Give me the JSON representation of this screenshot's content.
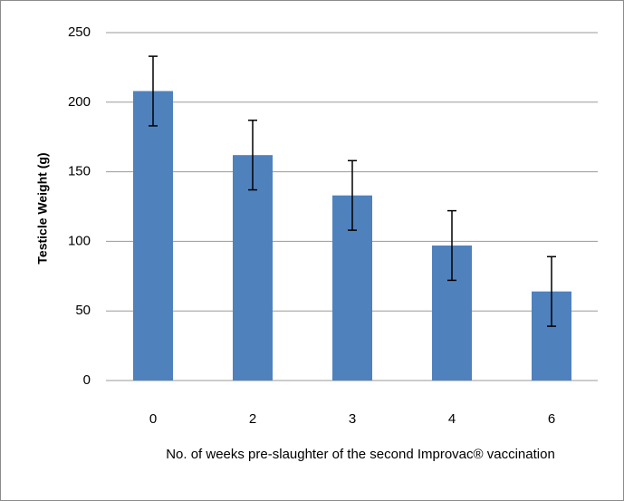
{
  "chart_data": {
    "type": "bar",
    "ylabel": "Testicle Weight (g)",
    "xlabel": "No. of weeks pre-slaughter of the second Improvac® vaccination",
    "categories": [
      "0",
      "2",
      "3",
      "4",
      "6"
    ],
    "values": [
      208,
      162,
      133,
      97,
      64
    ],
    "errors": [
      25,
      25,
      25,
      25,
      25
    ],
    "color": "#4f81bd",
    "ylim": [
      0,
      250
    ],
    "yticks": [
      0,
      50,
      100,
      150,
      200,
      250
    ],
    "grid": true
  }
}
